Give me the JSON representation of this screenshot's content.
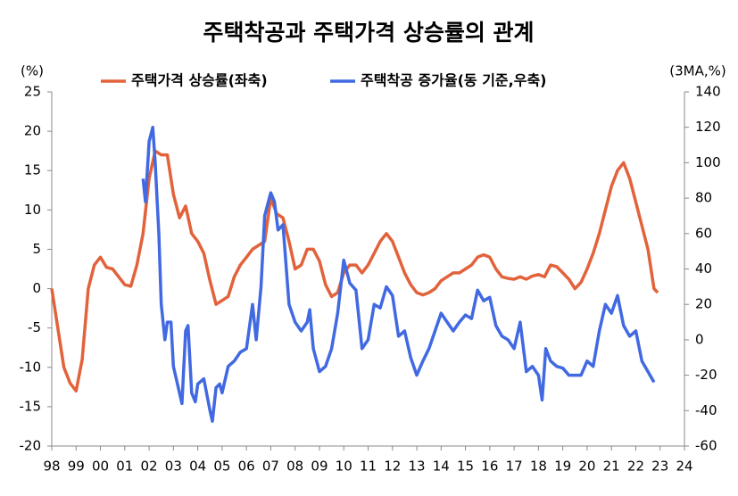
{
  "chart_data": {
    "type": "line",
    "title": "주택착공과 주택가격 상승률의 관계",
    "ylabel": "(%)",
    "y2label": "(3MA,%)",
    "xlim": [
      1998,
      2024
    ],
    "xticks": [
      {
        "value": 1998,
        "label": "98"
      },
      {
        "value": 1999,
        "label": "99"
      },
      {
        "value": 2000,
        "label": "00"
      },
      {
        "value": 2001,
        "label": "01"
      },
      {
        "value": 2002,
        "label": "02"
      },
      {
        "value": 2003,
        "label": "03"
      },
      {
        "value": 2004,
        "label": "04"
      },
      {
        "value": 2005,
        "label": "05"
      },
      {
        "value": 2006,
        "label": "06"
      },
      {
        "value": 2007,
        "label": "07"
      },
      {
        "value": 2008,
        "label": "08"
      },
      {
        "value": 2009,
        "label": "09"
      },
      {
        "value": 2010,
        "label": "10"
      },
      {
        "value": 2011,
        "label": "11"
      },
      {
        "value": 2012,
        "label": "12"
      },
      {
        "value": 2013,
        "label": "13"
      },
      {
        "value": 2014,
        "label": "14"
      },
      {
        "value": 2015,
        "label": "15"
      },
      {
        "value": 2016,
        "label": "16"
      },
      {
        "value": 2017,
        "label": "17"
      },
      {
        "value": 2018,
        "label": "18"
      },
      {
        "value": 2019,
        "label": "19"
      },
      {
        "value": 2020,
        "label": "20"
      },
      {
        "value": 2021,
        "label": "21"
      },
      {
        "value": 2022,
        "label": "22"
      },
      {
        "value": 2023,
        "label": "23"
      },
      {
        "value": 2024,
        "label": "24"
      }
    ],
    "ylim": [
      -20,
      25
    ],
    "yticks": [
      -20,
      -15,
      -10,
      -5,
      0,
      5,
      10,
      15,
      20,
      25
    ],
    "y2lim": [
      -60,
      140
    ],
    "y2ticks": [
      -60,
      -40,
      -20,
      0,
      20,
      40,
      60,
      80,
      100,
      120,
      140
    ],
    "legend": "top",
    "series": [
      {
        "name": "주택가격 상승률(좌축)",
        "color": "#e2623b",
        "axis": "y",
        "x": [
          1998,
          1998.25,
          1998.5,
          1998.75,
          1999,
          1999.25,
          1999.5,
          1999.75,
          2000,
          2000.25,
          2000.5,
          2000.75,
          2001,
          2001.25,
          2001.5,
          2001.75,
          2002,
          2002.25,
          2002.5,
          2002.75,
          2003,
          2003.25,
          2003.5,
          2003.75,
          2004,
          2004.25,
          2004.5,
          2004.75,
          2005,
          2005.25,
          2005.5,
          2005.75,
          2006,
          2006.25,
          2006.5,
          2006.75,
          2007,
          2007.25,
          2007.5,
          2007.75,
          2008,
          2008.25,
          2008.5,
          2008.75,
          2009,
          2009.25,
          2009.5,
          2009.75,
          2010,
          2010.25,
          2010.5,
          2010.75,
          2011,
          2011.25,
          2011.5,
          2011.75,
          2012,
          2012.25,
          2012.5,
          2012.75,
          2013,
          2013.25,
          2013.5,
          2013.75,
          2014,
          2014.25,
          2014.5,
          2014.75,
          2015,
          2015.25,
          2015.5,
          2015.75,
          2016,
          2016.25,
          2016.5,
          2016.75,
          2017,
          2017.25,
          2017.5,
          2017.75,
          2018,
          2018.25,
          2018.5,
          2018.75,
          2019,
          2019.25,
          2019.5,
          2019.75,
          2020,
          2020.25,
          2020.5,
          2020.75,
          2021,
          2021.25,
          2021.5,
          2021.75,
          2022,
          2022.25,
          2022.5,
          2022.75,
          2022.9
        ],
        "values": [
          0,
          -5,
          -10,
          -12,
          -13,
          -9,
          0,
          3,
          4,
          2.7,
          2.5,
          1.5,
          0.5,
          0.3,
          3,
          7,
          14,
          17.5,
          17,
          17,
          12,
          9,
          10.5,
          7,
          6,
          4.5,
          1,
          -2,
          -1.5,
          -1,
          1.5,
          3,
          4,
          5,
          5.5,
          6,
          11.5,
          9.5,
          9,
          6,
          2.5,
          3,
          5,
          5,
          3.5,
          0.5,
          -1,
          -0.5,
          2,
          3,
          3,
          2,
          3,
          4.5,
          6,
          7,
          6,
          4,
          2,
          0.5,
          -0.5,
          -0.8,
          -0.5,
          0,
          1,
          1.5,
          2,
          2,
          2.5,
          3,
          4,
          4.3,
          4,
          2.5,
          1.5,
          1.3,
          1.2,
          1.5,
          1.2,
          1.6,
          1.8,
          1.5,
          3,
          2.8,
          2,
          1.2,
          0,
          0.8,
          2.5,
          4.5,
          7,
          10,
          13,
          15,
          16,
          14,
          11,
          8,
          5,
          0,
          -0.5
        ]
      },
      {
        "name": "주택착공 증가율(동 기준,우축)",
        "color": "#4169e1",
        "axis": "y2",
        "x": [
          2001.75,
          2001.85,
          2002,
          2002.15,
          2002.25,
          2002.4,
          2002.5,
          2002.65,
          2002.75,
          2002.9,
          2003,
          2003.2,
          2003.35,
          2003.5,
          2003.6,
          2003.75,
          2003.9,
          2004,
          2004.25,
          2004.5,
          2004.6,
          2004.75,
          2004.9,
          2005,
          2005.25,
          2005.5,
          2005.75,
          2006,
          2006.25,
          2006.4,
          2006.6,
          2006.75,
          2007,
          2007.15,
          2007.3,
          2007.5,
          2007.75,
          2008,
          2008.25,
          2008.5,
          2008.6,
          2008.75,
          2009,
          2009.25,
          2009.5,
          2009.75,
          2010,
          2010.25,
          2010.5,
          2010.75,
          2011,
          2011.25,
          2011.5,
          2011.75,
          2012,
          2012.25,
          2012.5,
          2012.75,
          2013,
          2013.25,
          2013.5,
          2013.75,
          2014,
          2014.25,
          2014.5,
          2014.75,
          2015,
          2015.25,
          2015.5,
          2015.75,
          2016,
          2016.25,
          2016.5,
          2016.75,
          2017,
          2017.25,
          2017.5,
          2017.75,
          2018,
          2018.15,
          2018.3,
          2018.5,
          2018.75,
          2019,
          2019.25,
          2019.5,
          2019.75,
          2020,
          2020.25,
          2020.5,
          2020.75,
          2021,
          2021.25,
          2021.5,
          2021.75,
          2022,
          2022.25,
          2022.5,
          2022.75
        ],
        "values": [
          91,
          78,
          112,
          120,
          100,
          60,
          20,
          0,
          10,
          10,
          -15,
          -27,
          -36,
          5,
          8,
          -30,
          -35,
          -25,
          -22,
          -40,
          -46,
          -27,
          -25,
          -30,
          -15,
          -12,
          -7,
          -5,
          20,
          0,
          30,
          70,
          83,
          78,
          62,
          65,
          20,
          10,
          5,
          10,
          17,
          -5,
          -18,
          -15,
          -5,
          15,
          45,
          32,
          28,
          -5,
          0,
          20,
          18,
          30,
          25,
          2,
          5,
          -10,
          -20,
          -12,
          -5,
          5,
          15,
          10,
          5,
          10,
          14,
          12,
          28,
          22,
          24,
          8,
          2,
          0,
          -5,
          10,
          -18,
          -15,
          -20,
          -34,
          -5,
          -12,
          -15,
          -16,
          -20,
          -20,
          -20,
          -12,
          -15,
          5,
          20,
          15,
          25,
          8,
          2,
          5,
          -12,
          -18,
          -24
        ]
      }
    ]
  }
}
